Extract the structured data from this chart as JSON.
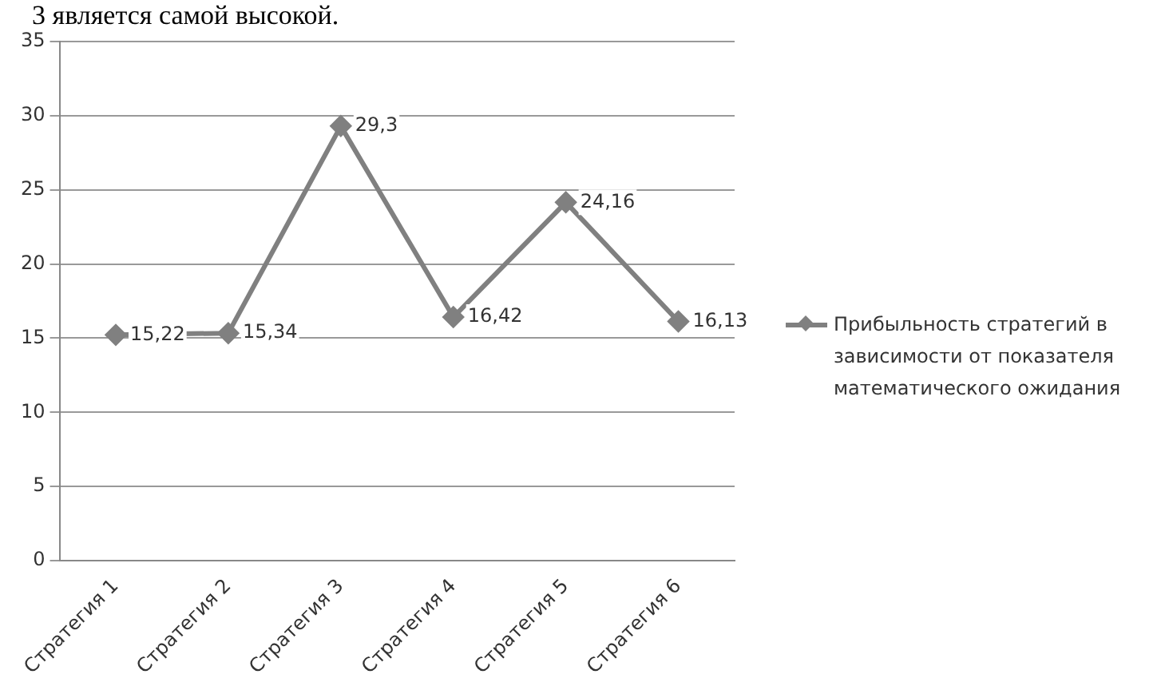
{
  "chart_data": {
    "type": "line",
    "annotations": [
      "3 является самой высокой."
    ],
    "categories": [
      "Стратегия 1",
      "Стратегия 2",
      "Стратегия 3",
      "Стратегия 4",
      "Стратегия 5",
      "Стратегия 6"
    ],
    "series": [
      {
        "name": "Прибыльность стратегий в зависимости от показателя математического  ожидания",
        "color": "#808080",
        "values": [
          15.22,
          15.34,
          29.3,
          16.42,
          24.16,
          16.13
        ],
        "value_labels": [
          "15,22",
          "15,34",
          "29,3",
          "16,42",
          "24,16",
          "16,13"
        ]
      }
    ],
    "ylim": [
      0,
      35
    ],
    "yticks": [
      0,
      5,
      10,
      15,
      20,
      25,
      30,
      35
    ],
    "grid": "y",
    "legend": "right",
    "marker": "diamond",
    "line_style": "solid"
  }
}
